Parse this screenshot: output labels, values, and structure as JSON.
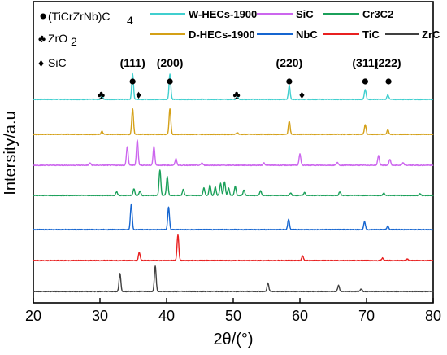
{
  "chart_data": {
    "type": "line",
    "xlabel": "2θ/(°)",
    "ylabel": "Intersity/a.u",
    "xlim": [
      20,
      80
    ],
    "xticks": [
      20,
      30,
      40,
      50,
      60,
      70,
      80
    ],
    "grid": false,
    "y_ticks_shown": false,
    "legend_position": "top-right",
    "phase_legend": [
      {
        "symbol": "circle",
        "label": "(TiCrZrNb)C",
        "subscript": "4"
      },
      {
        "symbol": "club",
        "label": "ZrO",
        "subscript": "2"
      },
      {
        "symbol": "diamond",
        "label": "SiC",
        "subscript": ""
      }
    ],
    "series": [
      {
        "name": "W-HECs-1900",
        "color": "#40cfcf",
        "stack_order": 0,
        "peaks": [
          [
            30.3,
            0.12
          ],
          [
            34.9,
            0.85
          ],
          [
            40.5,
            0.85
          ],
          [
            50.6,
            0.08
          ],
          [
            58.4,
            0.45
          ],
          [
            69.8,
            0.32
          ],
          [
            73.2,
            0.15
          ]
        ]
      },
      {
        "name": "D-HECs-1900",
        "color": "#d4a017",
        "stack_order": 1,
        "peaks": [
          [
            30.3,
            0.1
          ],
          [
            34.9,
            0.85
          ],
          [
            40.5,
            0.85
          ],
          [
            50.6,
            0.06
          ],
          [
            58.4,
            0.45
          ],
          [
            69.8,
            0.32
          ],
          [
            73.2,
            0.15
          ]
        ]
      },
      {
        "name": "SiC",
        "color": "#cc66ee",
        "stack_order": 2,
        "peaks": [
          [
            28.5,
            0.08
          ],
          [
            34.1,
            0.62
          ],
          [
            35.6,
            0.85
          ],
          [
            38.1,
            0.62
          ],
          [
            41.4,
            0.22
          ],
          [
            45.3,
            0.08
          ],
          [
            54.6,
            0.08
          ],
          [
            60.0,
            0.38
          ],
          [
            65.6,
            0.1
          ],
          [
            71.8,
            0.32
          ],
          [
            73.5,
            0.2
          ],
          [
            75.5,
            0.08
          ]
        ]
      },
      {
        "name": "Cr3C2",
        "color": "#1ba05a",
        "stack_order": 3,
        "peaks": [
          [
            32.5,
            0.12
          ],
          [
            35.1,
            0.22
          ],
          [
            36.0,
            0.15
          ],
          [
            39.0,
            0.85
          ],
          [
            40.1,
            0.62
          ],
          [
            42.5,
            0.2
          ],
          [
            45.6,
            0.25
          ],
          [
            46.5,
            0.35
          ],
          [
            47.3,
            0.28
          ],
          [
            48.1,
            0.4
          ],
          [
            48.7,
            0.45
          ],
          [
            49.3,
            0.25
          ],
          [
            50.3,
            0.3
          ],
          [
            51.6,
            0.18
          ],
          [
            54.1,
            0.15
          ],
          [
            58.6,
            0.08
          ],
          [
            60.7,
            0.1
          ],
          [
            66.0,
            0.12
          ],
          [
            72.6,
            0.08
          ],
          [
            78.0,
            0.05
          ]
        ]
      },
      {
        "name": "NbC",
        "color": "#1565d0",
        "stack_order": 4,
        "peaks": [
          [
            34.7,
            0.85
          ],
          [
            40.3,
            0.75
          ],
          [
            58.3,
            0.35
          ],
          [
            69.7,
            0.27
          ],
          [
            73.2,
            0.12
          ]
        ]
      },
      {
        "name": "TiC",
        "color": "#e82020",
        "stack_order": 5,
        "peaks": [
          [
            35.9,
            0.27
          ],
          [
            41.7,
            0.85
          ],
          [
            60.4,
            0.15
          ],
          [
            72.4,
            0.08
          ],
          [
            76.1,
            0.05
          ]
        ]
      },
      {
        "name": "ZrC",
        "color": "#404040",
        "stack_order": 6,
        "peaks": [
          [
            33.0,
            0.6
          ],
          [
            38.3,
            0.85
          ],
          [
            55.2,
            0.28
          ],
          [
            65.8,
            0.2
          ],
          [
            69.2,
            0.08
          ]
        ]
      }
    ],
    "phase_markers": [
      {
        "symbol": "club",
        "x": 30.2
      },
      {
        "symbol": "circle",
        "x": 34.9
      },
      {
        "symbol": "diamond",
        "x": 35.8
      },
      {
        "symbol": "circle",
        "x": 40.5
      },
      {
        "symbol": "club",
        "x": 50.5
      },
      {
        "symbol": "circle",
        "x": 58.4
      },
      {
        "symbol": "diamond",
        "x": 60.3
      },
      {
        "symbol": "circle",
        "x": 69.8
      },
      {
        "symbol": "circle",
        "x": 73.3
      }
    ],
    "hkl_labels": [
      {
        "text": "(111)",
        "x": 34.9
      },
      {
        "text": "(200)",
        "x": 40.5
      },
      {
        "text": "(220)",
        "x": 58.4
      },
      {
        "text": "(311)",
        "x": 69.8
      },
      {
        "text": "(222)",
        "x": 73.2
      }
    ]
  }
}
